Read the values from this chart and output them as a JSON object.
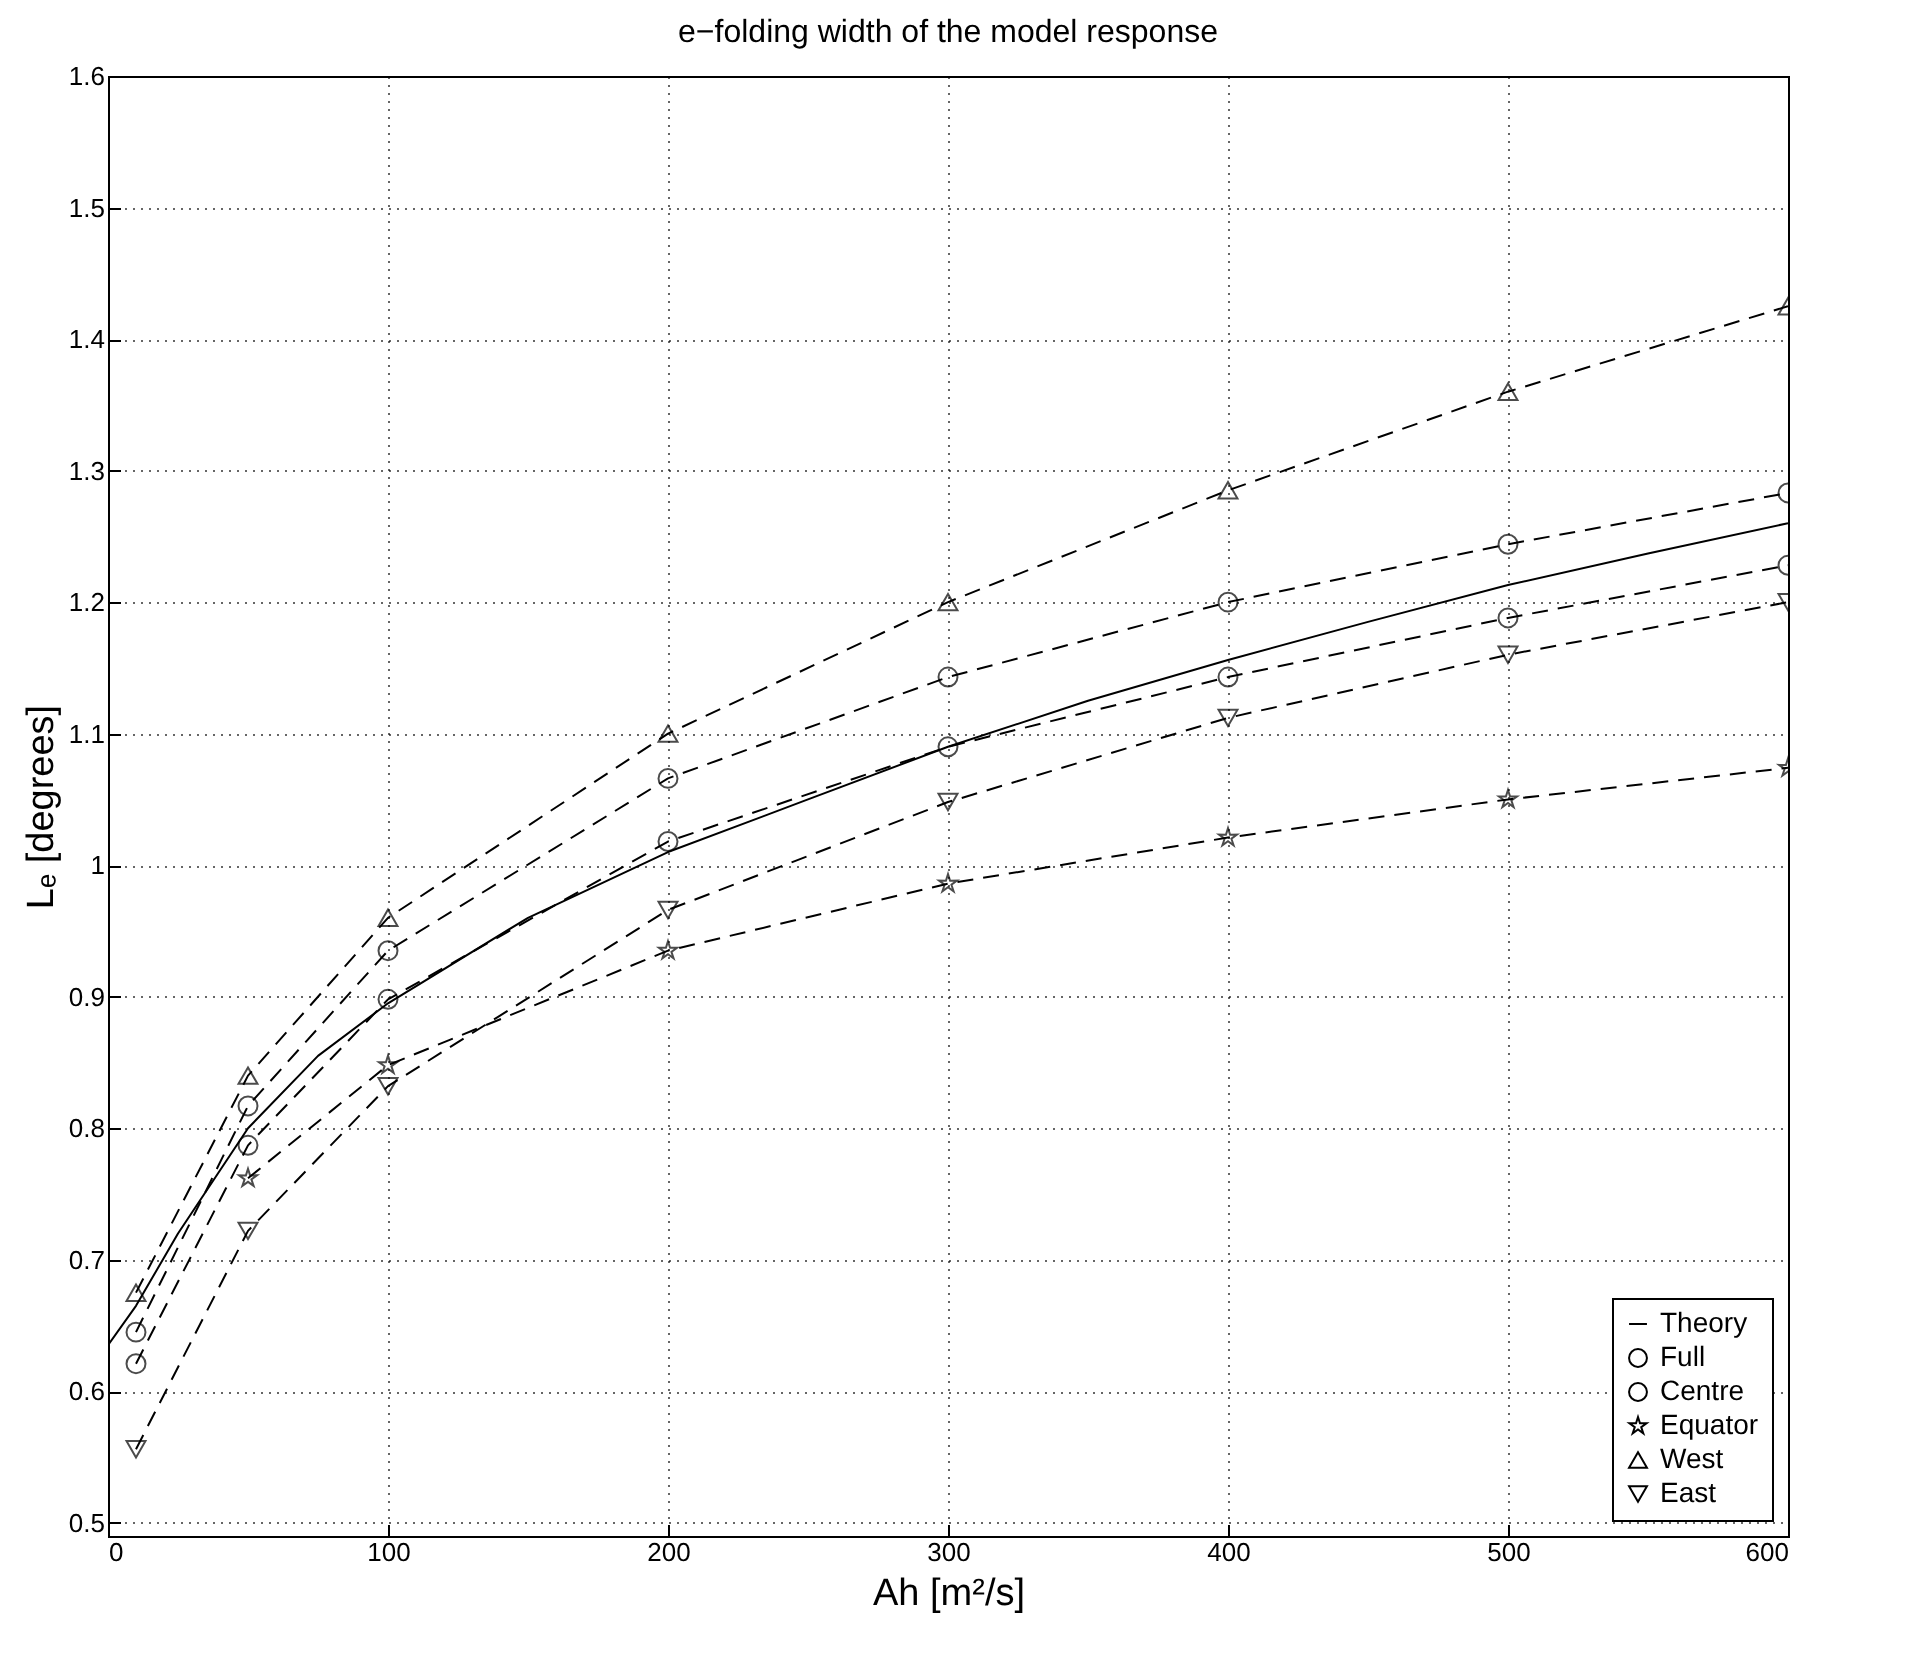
{
  "chart_data": {
    "type": "line",
    "title": "e−folding width of the model response",
    "xlabel": "Ah [m²/s]",
    "ylabel": "Lₑ [degrees]",
    "xlim": [
      0,
      600
    ],
    "xticks": [
      0,
      100,
      200,
      300,
      400,
      500,
      600
    ],
    "ylim": [
      0.49,
      1.6
    ],
    "yticks": [
      0.5,
      0.6,
      0.7,
      0.8,
      0.9,
      1,
      1.1,
      1.2,
      1.3,
      1.4,
      1.5,
      1.6
    ],
    "grid": true,
    "legend": "bottom right",
    "series": [
      {
        "name": "Theory",
        "color": "#000000",
        "line_style": "solid",
        "marker": "none",
        "x": [
          0,
          10,
          25,
          50,
          75,
          100,
          150,
          200,
          250,
          300,
          350,
          400,
          450,
          500,
          550,
          600
        ],
        "values": [
          0.635,
          0.665,
          0.72,
          0.8,
          0.855,
          0.895,
          0.96,
          1.01,
          1.05,
          1.09,
          1.125,
          1.156,
          1.185,
          1.213,
          1.237,
          1.26
        ]
      },
      {
        "name": "Full",
        "color": "#000000",
        "line_style": "dashed",
        "marker": "circle",
        "x": [
          10,
          50,
          100,
          200,
          300,
          400,
          500,
          600
        ],
        "values": [
          0.621,
          0.787,
          0.898,
          1.018,
          1.09,
          1.143,
          1.188,
          1.228
        ]
      },
      {
        "name": "Centre",
        "color": "#000000",
        "line_style": "dashed",
        "marker": "circle",
        "x": [
          10,
          50,
          100,
          200,
          300,
          400,
          500,
          600
        ],
        "values": [
          0.645,
          0.817,
          0.935,
          1.066,
          1.143,
          1.2,
          1.244,
          1.283
        ]
      },
      {
        "name": "Equator",
        "color": "#000000",
        "line_style": "dashed",
        "marker": "star",
        "x": [
          50,
          100,
          200,
          300,
          400,
          500,
          600
        ],
        "values": [
          0.762,
          0.848,
          0.935,
          0.986,
          1.021,
          1.05,
          1.074
        ]
      },
      {
        "name": "West",
        "color": "#000000",
        "line_style": "dashed",
        "marker": "triangle",
        "x": [
          10,
          50,
          100,
          200,
          300,
          400,
          500,
          600
        ],
        "values": [
          0.675,
          0.84,
          0.96,
          1.1,
          1.2,
          1.285,
          1.36,
          1.425
        ]
      },
      {
        "name": "East",
        "color": "#000000",
        "line_style": "dashed",
        "marker": "triangle-down",
        "x": [
          10,
          50,
          100,
          200,
          300,
          400,
          500,
          600
        ],
        "values": [
          0.556,
          0.722,
          0.832,
          0.966,
          1.048,
          1.112,
          1.16,
          1.2
        ]
      }
    ]
  }
}
